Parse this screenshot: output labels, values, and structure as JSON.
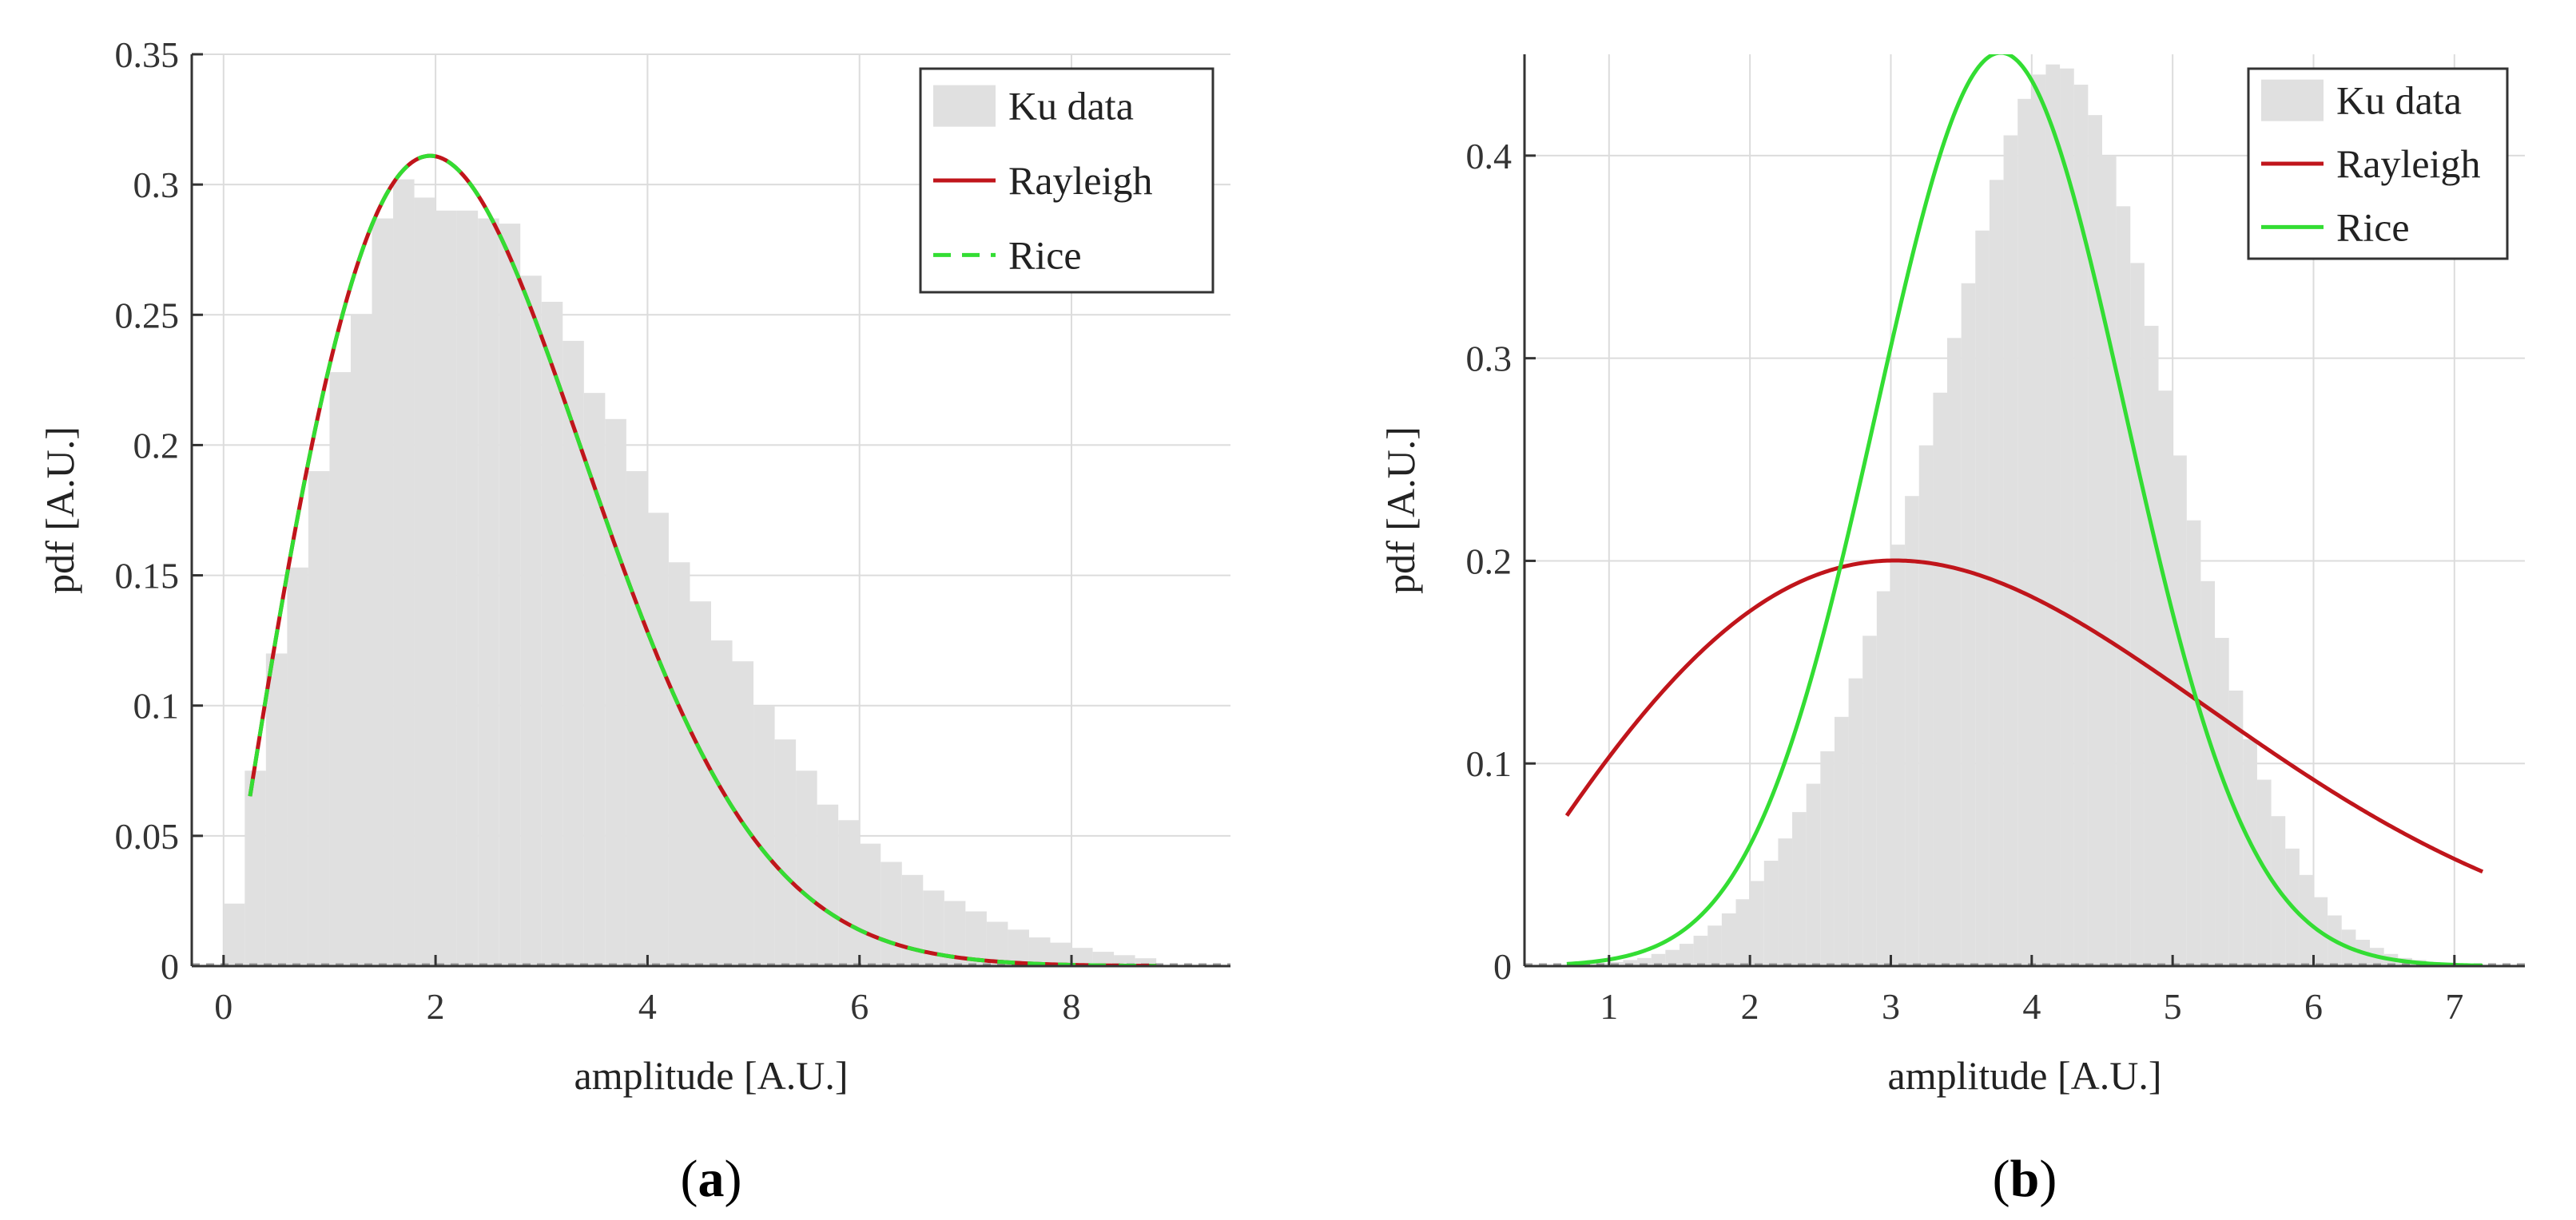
{
  "chart_data": [
    {
      "type": "histogram-with-fits",
      "panel_label": "a",
      "title": "",
      "xlabel": "amplitude [A.U.]",
      "ylabel": "pdf [A.U.]",
      "xlim": [
        -0.3,
        9.5
      ],
      "ylim": [
        0,
        0.35
      ],
      "xticks": [
        0,
        2,
        4,
        6,
        8
      ],
      "xtick_labels": [
        "0",
        "2",
        "4",
        "6",
        "8"
      ],
      "yticks": [
        0,
        0.05,
        0.1,
        0.15,
        0.2,
        0.25,
        0.3,
        0.35
      ],
      "ytick_labels": [
        "0",
        "0.05",
        "0.1",
        "0.15",
        "0.2",
        "0.25",
        "0.3",
        "0.35"
      ],
      "grid": true,
      "legend_position": "top-right",
      "legend": [
        {
          "label": "Ku data",
          "style": "patch",
          "color": "#e0e0e0"
        },
        {
          "label": "Rayleigh",
          "style": "solid",
          "color": "#c0151b"
        },
        {
          "label": "Rice",
          "style": "dashed",
          "color": "#33dd33"
        }
      ],
      "histogram": {
        "name": "Ku data",
        "color": "#e0e0e0",
        "bin_start": 0.0,
        "bin_width": 0.2,
        "values": [
          0.024,
          0.075,
          0.12,
          0.153,
          0.19,
          0.228,
          0.25,
          0.287,
          0.302,
          0.295,
          0.29,
          0.29,
          0.287,
          0.285,
          0.265,
          0.255,
          0.24,
          0.22,
          0.21,
          0.19,
          0.174,
          0.155,
          0.14,
          0.125,
          0.117,
          0.1,
          0.087,
          0.075,
          0.062,
          0.056,
          0.047,
          0.04,
          0.035,
          0.029,
          0.025,
          0.021,
          0.017,
          0.014,
          0.011,
          0.009,
          0.007,
          0.0055,
          0.0042,
          0.003
        ]
      },
      "series": [
        {
          "name": "Rayleigh",
          "model": "rayleigh",
          "sigma": 1.95,
          "x_range": [
            0.25,
            8.8
          ],
          "color": "#c0151b",
          "dash": "solid"
        },
        {
          "name": "Rice",
          "model": "rayleigh",
          "sigma": 1.95,
          "x_range": [
            0.25,
            8.8
          ],
          "color": "#33dd33",
          "dash": "dashed"
        }
      ]
    },
    {
      "type": "histogram-with-fits",
      "panel_label": "b",
      "title": "",
      "xlabel": "amplitude [A.U.]",
      "ylabel": "pdf [A.U.]",
      "xlim": [
        0.4,
        7.5
      ],
      "ylim": [
        0,
        0.45
      ],
      "xticks": [
        1,
        2,
        3,
        4,
        5,
        6,
        7
      ],
      "xtick_labels": [
        "1",
        "2",
        "3",
        "4",
        "5",
        "6",
        "7"
      ],
      "yticks": [
        0,
        0.1,
        0.2,
        0.3,
        0.4
      ],
      "ytick_labels": [
        "0",
        "0.1",
        "0.2",
        "0.3",
        "0.4"
      ],
      "grid": true,
      "legend_position": "top-right",
      "legend": [
        {
          "label": "Ku data",
          "style": "patch",
          "color": "#e0e0e0"
        },
        {
          "label": "Rayleigh",
          "style": "solid",
          "color": "#c0151b"
        },
        {
          "label": "Rice",
          "style": "solid",
          "color": "#33dd33"
        }
      ],
      "histogram": {
        "name": "Ku data",
        "color": "#e0e0e0",
        "bin_start": 0.7,
        "bin_width": 0.1,
        "values": [
          0.0005,
          0.001,
          0.0015,
          0.002,
          0.003,
          0.004,
          0.006,
          0.008,
          0.011,
          0.015,
          0.02,
          0.026,
          0.033,
          0.042,
          0.052,
          0.063,
          0.076,
          0.09,
          0.106,
          0.123,
          0.142,
          0.163,
          0.185,
          0.208,
          0.232,
          0.257,
          0.283,
          0.31,
          0.337,
          0.363,
          0.388,
          0.41,
          0.428,
          0.44,
          0.445,
          0.443,
          0.435,
          0.42,
          0.4,
          0.375,
          0.347,
          0.316,
          0.284,
          0.252,
          0.22,
          0.19,
          0.162,
          0.136,
          0.112,
          0.092,
          0.074,
          0.058,
          0.045,
          0.034,
          0.025,
          0.018,
          0.013,
          0.009,
          0.006,
          0.004,
          0.003,
          0.002,
          0.0015,
          0.001,
          0.0007,
          0.0005
        ]
      },
      "series": [
        {
          "name": "Rayleigh",
          "model": "rayleigh",
          "sigma": 3.03,
          "x_range": [
            0.7,
            7.2
          ],
          "color": "#c0151b",
          "dash": "solid"
        },
        {
          "name": "Rice",
          "model": "gaussian",
          "mean": 3.78,
          "std": 0.885,
          "x_range": [
            0.7,
            7.2
          ],
          "color": "#33dd33",
          "dash": "solid"
        }
      ]
    }
  ]
}
